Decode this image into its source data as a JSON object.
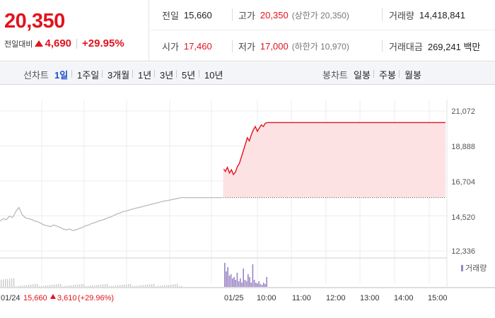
{
  "price": {
    "current": "20,350",
    "change_label": "전일대비",
    "change_value": "4,690",
    "change_pct": "+29.95%"
  },
  "stats": {
    "prev_close": {
      "label": "전일",
      "value": "15,660"
    },
    "high": {
      "label": "고가",
      "value": "20,350",
      "extra": "(상한가 20,350)"
    },
    "volume": {
      "label": "거래량",
      "value": "14,418,841"
    },
    "open": {
      "label": "시가",
      "value": "17,460"
    },
    "low": {
      "label": "저가",
      "value": "17,000",
      "extra": "(하한가 10,970)"
    },
    "amount": {
      "label": "거래대금",
      "value": "269,241 백만"
    }
  },
  "toolbar": {
    "line_label": "선차트",
    "line_periods": [
      "1일",
      "1주일",
      "3개월",
      "1년",
      "3년",
      "5년",
      "10년"
    ],
    "active_period": "1일",
    "candle_label": "봉차트",
    "candle_periods": [
      "일봉",
      "주봉",
      "월봉"
    ]
  },
  "chart_data": {
    "type": "line",
    "y_ticks": [
      "21,072",
      "18,888",
      "16,704",
      "14,520",
      "12,336"
    ],
    "y_tick_values": [
      21072,
      18888,
      16704,
      14520,
      12336
    ],
    "x_ticks": [
      "01/25",
      "10:00",
      "11:00",
      "12:00",
      "13:00",
      "14:00",
      "15:00"
    ],
    "prev_day_label": "01/24",
    "prev_day_close": "15,660",
    "prev_day_change": "3,610",
    "prev_day_pct": "(+29.96%)",
    "volume_legend": "거래량",
    "reference_price": 15660,
    "upper_limit": 20350,
    "series": [
      {
        "values_prev_day": [
          14200,
          14350,
          14280,
          14500,
          14420,
          14800,
          15050,
          14600,
          14400,
          14350,
          14300,
          14200,
          14150,
          14050,
          13950,
          13900,
          13850,
          13950,
          13880,
          13800,
          13700,
          13650,
          13700,
          13600,
          13650,
          13720,
          13800,
          13900,
          13950,
          14050,
          14100,
          14180,
          14250,
          14300,
          14400,
          14450,
          14550,
          14650,
          14700,
          14800,
          14820,
          14900,
          14950,
          15000,
          15050,
          15100,
          15150,
          15200,
          15250,
          15300,
          15350,
          15400,
          15450,
          15480,
          15520,
          15560,
          15600,
          15660
        ],
        "values_today": [
          17460,
          17300,
          17550,
          17200,
          17400,
          17100,
          17250,
          17600,
          17800,
          18200,
          18600,
          19000,
          19400,
          19200,
          19600,
          19900,
          20100,
          19800,
          20000,
          20200,
          20100,
          20300,
          20350,
          20350,
          20350,
          20350,
          20350,
          20350,
          20350,
          20350,
          20350,
          20350,
          20350,
          20350,
          20350,
          20350,
          20350
        ]
      }
    ]
  },
  "colors": {
    "up": "#e2131e",
    "today_fill": "#fde2e4",
    "prev_line": "#b5b5b5",
    "volume_bar": "#9a84c5"
  }
}
